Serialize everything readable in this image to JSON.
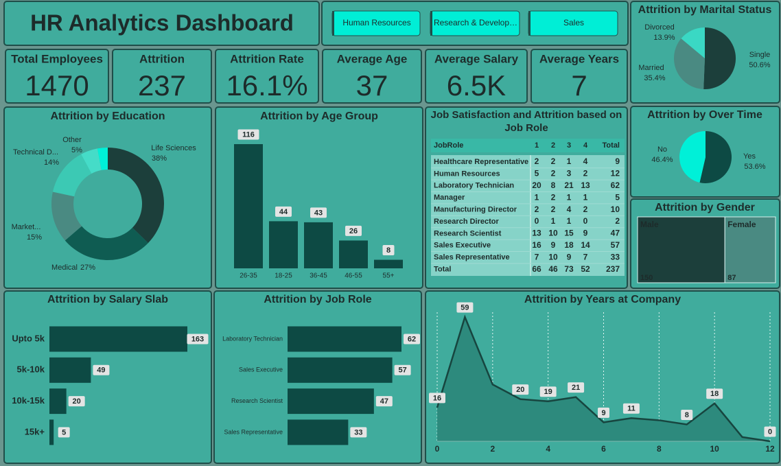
{
  "header": {
    "title": "HR Analytics Dashboard"
  },
  "filters": [
    "Human Resources",
    "Research & Develop…",
    "Sales"
  ],
  "kpis": [
    {
      "label": "Total Employees",
      "value": 1470
    },
    {
      "label": "Attrition",
      "value": 237
    },
    {
      "label": "Attrition Rate",
      "value": "16.1%"
    },
    {
      "label": "Average Age",
      "value": 37
    },
    {
      "label": "Average Salary",
      "value": "6.5K"
    },
    {
      "label": "Average Years",
      "value": 7
    }
  ],
  "table": {
    "title": "Job Satisfaction and Attrition based on Job Role",
    "columns": [
      "JobRole",
      "1",
      "2",
      "3",
      "4",
      "Total"
    ],
    "rows": [
      [
        "Healthcare Representative",
        2,
        2,
        1,
        4,
        9
      ],
      [
        "Human Resources",
        5,
        2,
        3,
        2,
        12
      ],
      [
        "Laboratory Technician",
        20,
        8,
        21,
        13,
        62
      ],
      [
        "Manager",
        1,
        2,
        1,
        1,
        5
      ],
      [
        "Manufacturing Director",
        2,
        2,
        4,
        2,
        10
      ],
      [
        "Research Director",
        0,
        1,
        1,
        0,
        2
      ],
      [
        "Research Scientist",
        13,
        10,
        15,
        9,
        47
      ],
      [
        "Sales Executive",
        16,
        9,
        18,
        14,
        57
      ],
      [
        "Sales Representative",
        7,
        10,
        9,
        7,
        33
      ],
      [
        "Total",
        66,
        46,
        73,
        52,
        237
      ]
    ]
  },
  "chart_data": [
    {
      "type": "pie",
      "title": "Attrition by Marital Status",
      "categories": [
        "Single",
        "Married",
        "Divorced"
      ],
      "values": [
        50.6,
        35.4,
        13.9
      ],
      "value_labels": [
        "50.6%",
        "35.4%",
        "13.9%"
      ],
      "colors": [
        "#1c3f3b",
        "#4a8a82",
        "#3ad8c4"
      ]
    },
    {
      "type": "donut",
      "title": "Attrition by Education",
      "categories": [
        "Life Sciences",
        "Medical",
        "Market...",
        "Technical D...",
        "Other",
        null
      ],
      "values": [
        38,
        27,
        15,
        14,
        5,
        3
      ],
      "value_labels": [
        "38%",
        "27%",
        "15%",
        "14%",
        "5%",
        null
      ],
      "colors": [
        "#1c3f3b",
        "#0f5c52",
        "#4a8a82",
        "#3cc9b4",
        "#45dcc8",
        "#00f0d8"
      ]
    },
    {
      "type": "column",
      "title": "Attrition by Age Group",
      "categories": [
        "26-35",
        "18-25",
        "36-45",
        "46-55",
        "55+"
      ],
      "values": [
        116,
        44,
        43,
        26,
        8
      ],
      "color": "#0d4a44"
    },
    {
      "type": "pie",
      "title": "Attrition by Over Time",
      "categories": [
        "Yes",
        "No"
      ],
      "values": [
        53.6,
        46.4
      ],
      "value_labels": [
        "53.6%",
        "46.4%"
      ],
      "colors": [
        "#0d4a44",
        "#00f0d8"
      ]
    },
    {
      "type": "treemap",
      "title": "Attrition by Gender",
      "categories": [
        "Male",
        "Female"
      ],
      "values": [
        150,
        87
      ],
      "colors": [
        "#1c3f3b",
        "#4a8a82"
      ]
    },
    {
      "type": "hbar",
      "title": "Attrition by Salary Slab",
      "categories": [
        "Upto 5k",
        "5k-10k",
        "10k-15k",
        "15k+"
      ],
      "values": [
        163,
        49,
        20,
        5
      ],
      "color": "#0d4a44"
    },
    {
      "type": "hbar",
      "title": "Attrition by Job Role",
      "categories": [
        "Laboratory Technician",
        "Sales Executive",
        "Research Scientist",
        "Sales Representative"
      ],
      "values": [
        62,
        57,
        47,
        33
      ],
      "color": "#0d4a44"
    },
    {
      "type": "area",
      "title": "Attrition by Years at Company",
      "x": [
        0,
        1,
        2,
        3,
        4,
        5,
        6,
        7,
        8,
        9,
        10,
        11,
        12
      ],
      "values": [
        16,
        59,
        27,
        20,
        19,
        21,
        9,
        11,
        10,
        8,
        18,
        2,
        0
      ],
      "value_labels": [
        "16",
        "59",
        null,
        "20",
        "19",
        "21",
        "9",
        "11",
        null,
        "8",
        "18",
        null,
        "0"
      ],
      "xlim": [
        0,
        12
      ],
      "xticks": [
        0,
        2,
        4,
        6,
        8,
        10,
        12
      ],
      "grid": true,
      "color": "#2d8a7d",
      "line_color": "#17453f"
    }
  ]
}
